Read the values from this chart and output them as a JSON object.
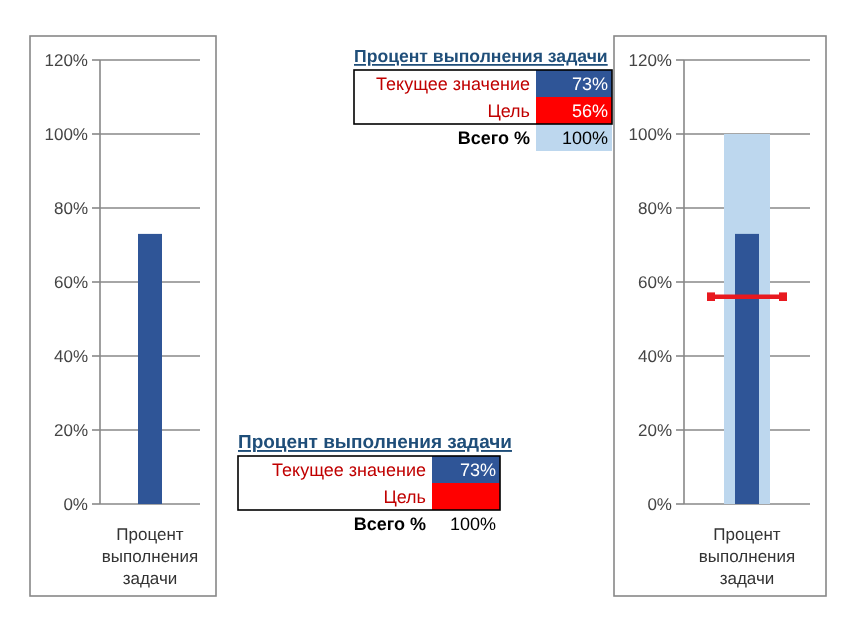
{
  "chart_data": [
    {
      "type": "bar",
      "categories": [
        "Процент выполнения задачи"
      ],
      "values": [
        73
      ],
      "color": "#2f5597",
      "ylim": [
        0,
        120
      ],
      "yticks": [
        {
          "value": 0,
          "label": "0%"
        },
        {
          "value": 20,
          "label": "20%"
        },
        {
          "value": 40,
          "label": "40%"
        },
        {
          "value": 60,
          "label": "60%"
        },
        {
          "value": 80,
          "label": "80%"
        },
        {
          "value": 100,
          "label": "100%"
        },
        {
          "value": 120,
          "label": "120%"
        }
      ],
      "grid": "y"
    },
    {
      "type": "other",
      "title": "Процент выполнения задачи",
      "categories": [
        "Текущее значение",
        "Цель",
        "Всего %"
      ],
      "value_labels": [
        "73%",
        "56%",
        "100%"
      ],
      "colors": [
        "#2f5597",
        "#ff0000",
        "#bdd7ee"
      ]
    },
    {
      "type": "other",
      "title": "Процент выполнения задачи",
      "categories": [
        "Текущее значение",
        "Цель",
        "Всего %"
      ],
      "value_labels": [
        "73%",
        null,
        "100%"
      ],
      "colors": [
        "#2f5597",
        "#ff0000",
        null
      ]
    },
    {
      "type": "bar",
      "categories": [
        "Процент выполнения задачи"
      ],
      "series": [
        {
          "color": "#bdd7ee",
          "values": [
            100
          ]
        },
        {
          "color": "#2f5597",
          "values": [
            73
          ]
        }
      ],
      "ref_lines": [
        {
          "axis": "y",
          "value": 56,
          "color": "#e8191f"
        }
      ],
      "ylim": [
        0,
        120
      ],
      "yticks": [
        {
          "value": 0,
          "label": "0%"
        },
        {
          "value": 20,
          "label": "20%"
        },
        {
          "value": 40,
          "label": "40%"
        },
        {
          "value": 60,
          "label": "60%"
        },
        {
          "value": 80,
          "label": "80%"
        },
        {
          "value": 100,
          "label": "100%"
        },
        {
          "value": 120,
          "label": "120%"
        }
      ],
      "grid": "y"
    }
  ]
}
